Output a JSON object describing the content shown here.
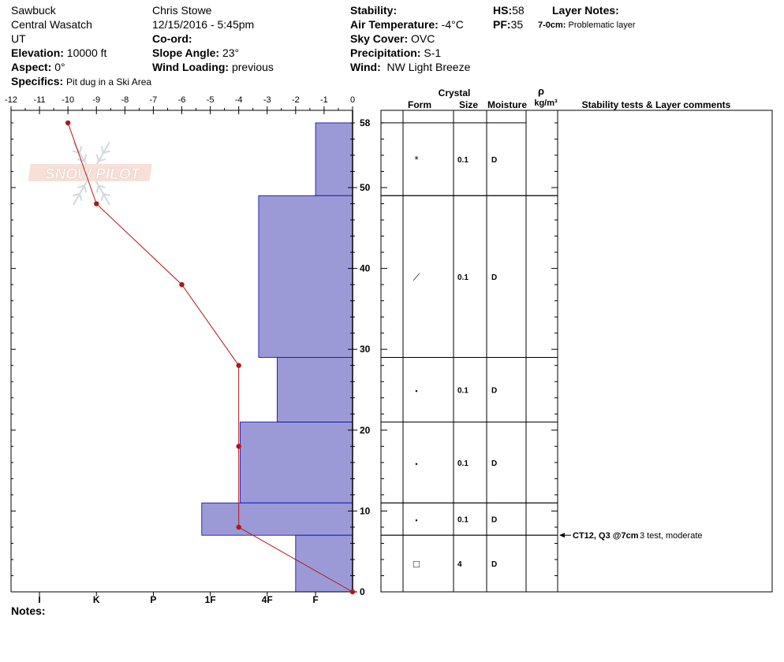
{
  "header": {
    "location": "Sawbuck",
    "region": "Central Wasatch",
    "state": "UT",
    "elevation_label": "Elevation:",
    "elevation_value": "10000 ft",
    "aspect_label": "Aspect:",
    "aspect_value": "0°",
    "specifics_label": "Specifics:",
    "specifics_value": "Pit dug in a Ski Area",
    "observer": "Chris Stowe",
    "datetime": "12/15/2016 - 5:45pm",
    "coord_label": "Co-ord:",
    "slope_label": "Slope Angle:",
    "slope_value": "23°",
    "wind_loading_label": "Wind Loading:",
    "wind_loading_value": "previous",
    "stability_label": "Stability:",
    "air_temp_label": "Air Temperature:",
    "air_temp_value": "-4°C",
    "sky_label": "Sky Cover:",
    "sky_value": "OVC",
    "precip_label": "Precipitation:",
    "precip_value": "S-1",
    "wind_label": "Wind:",
    "wind_value": "NW Light Breeze",
    "hs_label": "HS:",
    "hs_value": "58",
    "pf_label": "PF:",
    "pf_value": "35",
    "layer_notes_label": "Layer Notes:",
    "layer_note_range": "7-0cm:",
    "layer_note_text": "Problematic layer",
    "notes_label": "Notes:"
  },
  "watermark": "SNOW PILOT",
  "table_headers": {
    "crystal": "Crystal",
    "form": "Form",
    "size": "Size",
    "moisture": "Moisture",
    "rho": "ρ",
    "density_unit": "kg/m³",
    "stability": "Stability tests & Layer comments"
  },
  "chart_data": {
    "type": "snow-profile",
    "temperature_axis": {
      "ticks": [
        "-12",
        "-11",
        "-10",
        "-9",
        "-8",
        "-7",
        "-6",
        "-5",
        "-4",
        "-3",
        "-2",
        "-1",
        "0"
      ],
      "range": [
        -12,
        0
      ]
    },
    "height_axis": {
      "ticks": [
        "0",
        "10",
        "20",
        "30",
        "40",
        "50",
        "58"
      ],
      "range": [
        0,
        58
      ]
    },
    "hardness_axis": {
      "ticks": [
        "I",
        "K",
        "P",
        "1F",
        "4F",
        "F"
      ]
    },
    "temperature_profile": [
      {
        "height": 58,
        "temp": -10
      },
      {
        "height": 48,
        "temp": -9
      },
      {
        "height": 38,
        "temp": -6
      },
      {
        "height": 28,
        "temp": -4
      },
      {
        "height": 18,
        "temp": -4
      },
      {
        "height": 8,
        "temp": -4
      },
      {
        "height": 0,
        "temp": 0
      }
    ],
    "hardness_layers": [
      {
        "top": 58,
        "bottom": 49,
        "extent": 1.3
      },
      {
        "top": 49,
        "bottom": 29,
        "extent": 3.3
      },
      {
        "top": 29,
        "bottom": 21,
        "extent": 2.65
      },
      {
        "top": 21,
        "bottom": 11,
        "extent": 3.95
      },
      {
        "top": 11,
        "bottom": 7,
        "extent": 5.3
      },
      {
        "top": 7,
        "bottom": 0,
        "extent": 2.0
      }
    ],
    "layers": [
      {
        "top": 58,
        "bottom": 49,
        "form": "*",
        "size": "0.1",
        "moisture": "D"
      },
      {
        "top": 49,
        "bottom": 29,
        "form": "⟋",
        "size": "0.1",
        "moisture": "D"
      },
      {
        "top": 29,
        "bottom": 21,
        "form": "•",
        "size": "0.1",
        "moisture": "D"
      },
      {
        "top": 21,
        "bottom": 11,
        "form": "•",
        "size": "0.1",
        "moisture": "D"
      },
      {
        "top": 11,
        "bottom": 7,
        "form": "•",
        "size": "0.1",
        "moisture": "D"
      },
      {
        "top": 7,
        "bottom": 0,
        "form": "□",
        "size": "4",
        "moisture": "D"
      }
    ],
    "stability_test": {
      "height": 7,
      "code": "CT12, Q3 @7cm",
      "comment": "3 test, moderate"
    },
    "colors": {
      "hardness_fill": "#9c9ad6",
      "hardness_stroke": "#0000b0",
      "temp_line": "#b01818"
    }
  }
}
